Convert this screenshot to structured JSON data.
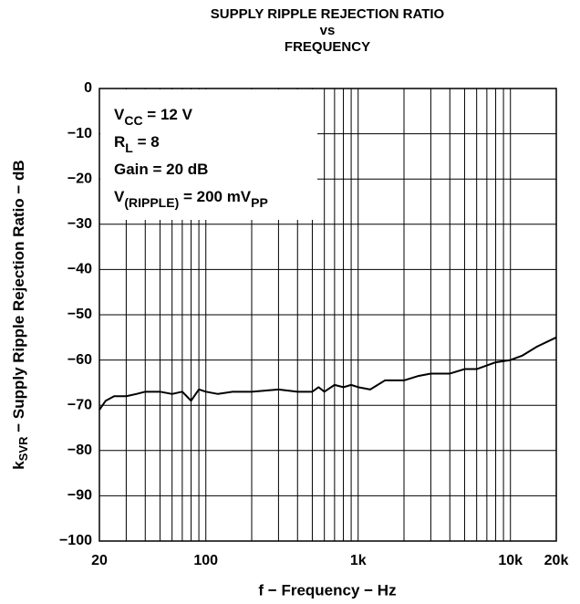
{
  "chart_data": {
    "type": "line",
    "title": [
      "SUPPLY RIPPLE REJECTION RATIO",
      "vs",
      "FREQUENCY"
    ],
    "x_label": "f − Frequency − Hz",
    "y_label": [
      "k",
      "SVR",
      " − Supply Ripple Rejection Ratio − dB"
    ],
    "annotation": [
      [
        "V",
        "CC",
        " = 12 V"
      ],
      [
        "R",
        "L",
        " = 8"
      ],
      [
        "Gain = 20 dB"
      ],
      [
        "V",
        "(RIPPLE)",
        " = 200 mV",
        "PP"
      ]
    ],
    "log_x": true,
    "grid": true,
    "color": "#000000",
    "xlim": [
      20,
      20000
    ],
    "ylim": [
      -100,
      0
    ],
    "xticks": [
      20,
      100,
      {
        "value": 1000,
        "label": "1k"
      },
      {
        "value": 10000,
        "label": "10k"
      },
      {
        "value": 20000,
        "label": "20k"
      }
    ],
    "xgrid": [
      30,
      40,
      50,
      60,
      70,
      80,
      90,
      200,
      300,
      400,
      500,
      600,
      700,
      800,
      900,
      2000,
      3000,
      4000,
      5000,
      6000,
      7000,
      8000,
      9000
    ],
    "yticks": [
      {
        "value": -100,
        "label": "−100"
      },
      {
        "value": -90,
        "label": "−90"
      },
      {
        "value": -80,
        "label": "−80"
      },
      {
        "value": -70,
        "label": "−70"
      },
      {
        "value": -60,
        "label": "−60"
      },
      {
        "value": -50,
        "label": "−50"
      },
      {
        "value": -40,
        "label": "−40"
      },
      {
        "value": -30,
        "label": "−30"
      },
      {
        "value": -20,
        "label": "−20"
      },
      {
        "value": -10,
        "label": "−10"
      },
      0
    ],
    "x": [
      20,
      22,
      25,
      30,
      35,
      40,
      50,
      60,
      70,
      80,
      90,
      100,
      120,
      150,
      200,
      300,
      400,
      500,
      550,
      600,
      700,
      800,
      900,
      1000,
      1200,
      1500,
      2000,
      2500,
      3000,
      4000,
      5000,
      6000,
      8000,
      10000,
      12000,
      15000,
      20000
    ],
    "values": [
      -71,
      -69,
      -68,
      -68,
      -67.5,
      -67,
      -67,
      -67.5,
      -67,
      -69,
      -66.5,
      -67,
      -67.5,
      -67,
      -67,
      -66.5,
      -67,
      -67,
      -66,
      -67,
      -65.5,
      -66,
      -65.5,
      -66,
      -66.5,
      -64.5,
      -64.5,
      -63.5,
      -63,
      -63,
      -62,
      -62,
      -60.5,
      -60,
      -59,
      -57,
      -55
    ]
  }
}
